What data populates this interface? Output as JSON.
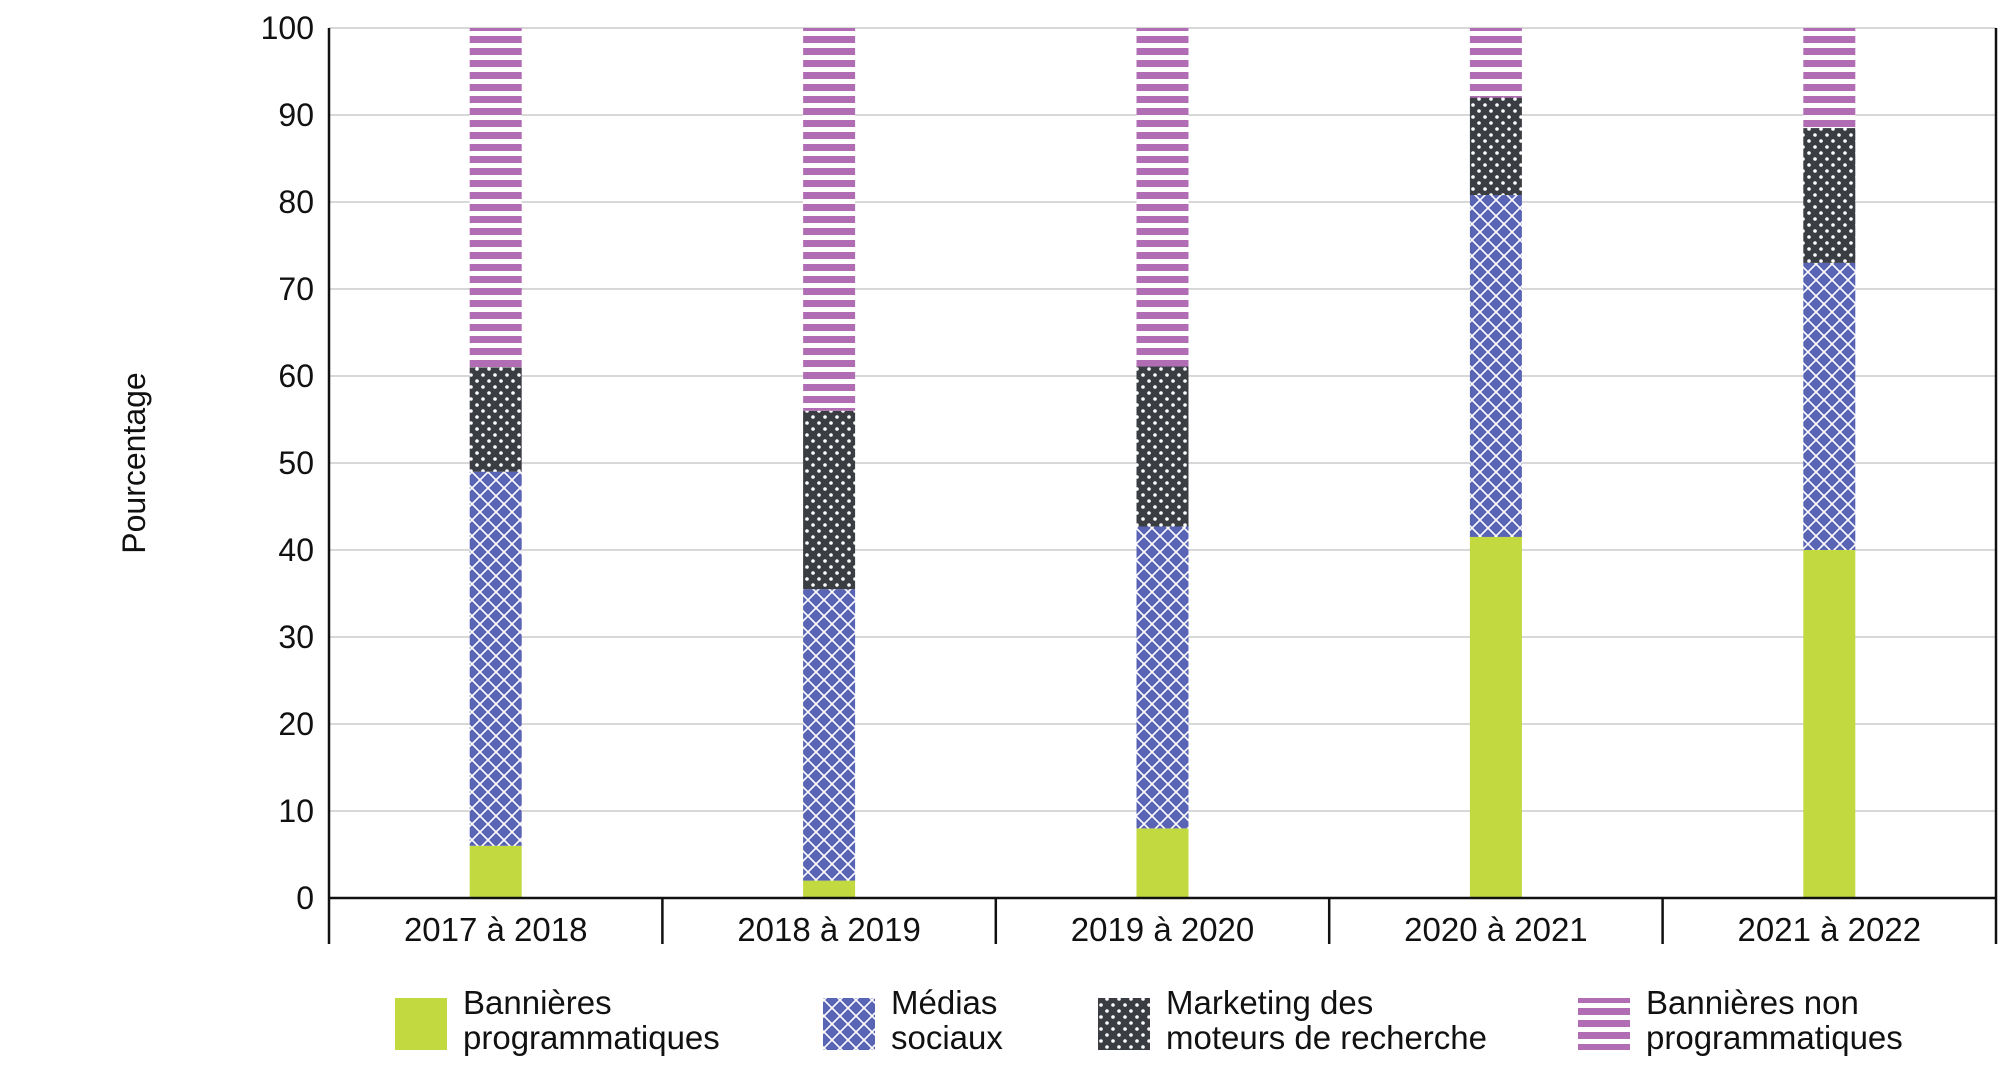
{
  "chart_data": {
    "type": "bar",
    "stacked": true,
    "title": "",
    "xlabel": "",
    "ylabel": "Pourcentage",
    "ylim": [
      0,
      100
    ],
    "yticks": [
      0,
      10,
      20,
      30,
      40,
      50,
      60,
      70,
      80,
      90,
      100
    ],
    "grid": true,
    "legend_position": "bottom",
    "categories": [
      "2017 à 2018",
      "2018 à 2019",
      "2019 à 2020",
      "2020 à 2021",
      "2021 à 2022"
    ],
    "series": [
      {
        "name": "Bannières programmatiques",
        "legend_lines": [
          "Bannières",
          "programmatiques"
        ],
        "pattern": "solid",
        "color": "#c2d940",
        "values": [
          6,
          2,
          8,
          41.5,
          40
        ]
      },
      {
        "name": "Médias sociaux",
        "legend_lines": [
          "Médias",
          "sociaux"
        ],
        "pattern": "crosshatch",
        "color": "#5a64b4",
        "values": [
          43,
          33.5,
          34.7,
          39.3,
          33
        ]
      },
      {
        "name": "Marketing des moteurs de recherche",
        "legend_lines": [
          "Marketing des",
          "moteurs de recherche"
        ],
        "pattern": "dots",
        "color": "#3a3d42",
        "values": [
          12,
          20.5,
          18.4,
          11.2,
          15.5
        ]
      },
      {
        "name": "Bannières non programmatiques",
        "legend_lines": [
          "Bannières non",
          "programmatiques"
        ],
        "pattern": "stripes",
        "color": "#b06db3",
        "values": [
          39,
          44,
          38.9,
          8,
          11.5
        ]
      }
    ]
  }
}
